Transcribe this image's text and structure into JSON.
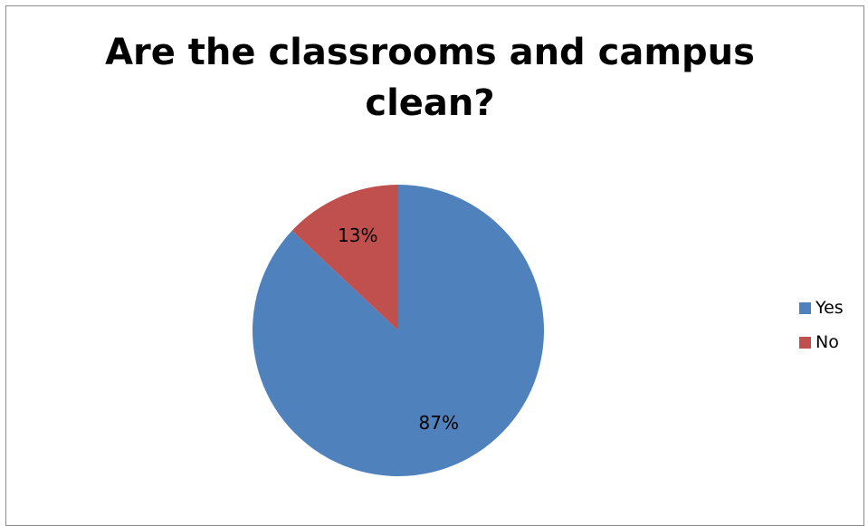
{
  "chart_data": {
    "type": "pie",
    "title": "Are the classrooms and campus\nclean?",
    "categories": [
      "Yes",
      "No"
    ],
    "values": [
      87,
      13
    ],
    "data_labels": [
      "87%",
      "13%"
    ],
    "colors": [
      "#4f81bd",
      "#c0504d"
    ],
    "legend_position": "right"
  }
}
